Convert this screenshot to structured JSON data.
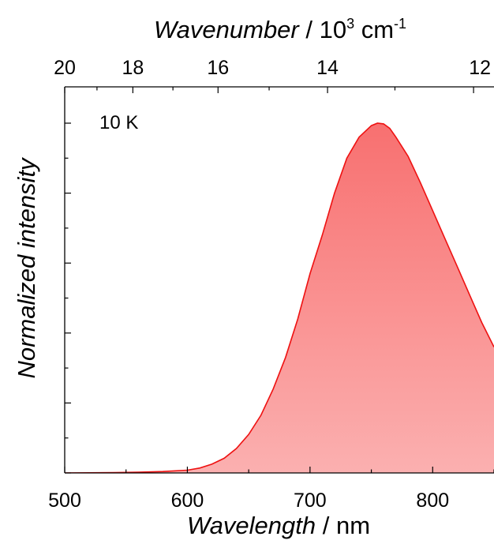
{
  "chart_data": {
    "type": "area",
    "annotation": "10 K",
    "xlabel": {
      "italic": "Wavelength",
      "rest": " / nm"
    },
    "x2label": {
      "italic": "Wavenumber",
      "rest_a": " / 10",
      "sup_a": "3",
      "rest_b": " cm",
      "sup_b": "-1"
    },
    "ylabel": "Normalized intensity",
    "xlim": [
      500,
      850
    ],
    "ylim": [
      0,
      1.0
    ],
    "x_ticks": [
      500,
      600,
      700,
      800
    ],
    "x_tick_labels": [
      "500",
      "600",
      "700",
      "800"
    ],
    "x2_ticks": [
      20,
      18,
      16,
      14,
      12
    ],
    "x2_tick_labels": [
      "20",
      "18",
      "16",
      "14",
      "12"
    ],
    "grid": false,
    "series": [
      {
        "color": "#ee1111",
        "fill_top": "#f87070",
        "fill_bottom": "#fbb0b0",
        "x": [
          500,
          540,
          560,
          580,
          600,
          610,
          620,
          630,
          640,
          650,
          660,
          670,
          680,
          690,
          700,
          710,
          720,
          730,
          740,
          750,
          755,
          760,
          765,
          770,
          780,
          790,
          800,
          810,
          820,
          830,
          840,
          850
        ],
        "y": [
          0,
          0.001,
          0.002,
          0.004,
          0.008,
          0.014,
          0.025,
          0.042,
          0.07,
          0.11,
          0.165,
          0.24,
          0.33,
          0.44,
          0.57,
          0.68,
          0.8,
          0.9,
          0.96,
          0.993,
          1.0,
          0.998,
          0.985,
          0.96,
          0.905,
          0.83,
          0.75,
          0.67,
          0.59,
          0.51,
          0.43,
          0.36
        ]
      }
    ]
  }
}
